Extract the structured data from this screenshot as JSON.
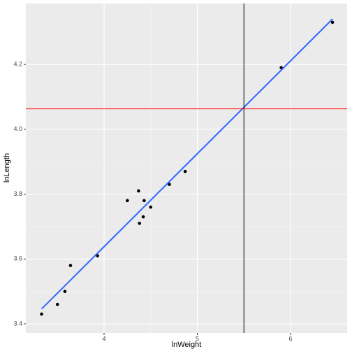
{
  "chart_data": {
    "type": "scatter",
    "x_label": "lnWeight",
    "y_label": "lnLength",
    "xlim": [
      3.161,
      6.607
    ],
    "ylim": [
      3.372,
      4.388
    ],
    "xticks": [
      4,
      5,
      6
    ],
    "yticks": [
      3.4,
      3.6,
      3.8,
      {
        "value": 4,
        "label": "4.0"
      },
      4.2
    ],
    "grid": true,
    "series": [
      {
        "color": "#000000",
        "x": [
          3.33,
          3.5,
          3.58,
          3.64,
          3.93,
          4.25,
          4.37,
          4.38,
          4.42,
          4.43,
          4.5,
          4.7,
          4.87,
          5.9,
          6.45
        ],
        "values": [
          3.43,
          3.46,
          3.5,
          3.58,
          3.61,
          3.78,
          3.81,
          3.71,
          3.73,
          3.78,
          3.76,
          3.83,
          3.87,
          4.19,
          4.33
        ]
      }
    ],
    "fit": {
      "color": "#3366ff",
      "x": [
        3.33,
        6.45
      ],
      "values": [
        3.446,
        4.34
      ]
    },
    "vline": {
      "x": 5.5,
      "color": "#000000"
    },
    "hline": {
      "y": 4.063,
      "color": "#ff0000"
    }
  }
}
